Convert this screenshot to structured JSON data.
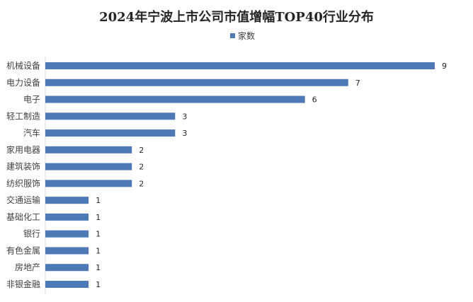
{
  "chart_data": {
    "type": "bar",
    "orientation": "horizontal",
    "title": "2024年宁波上市公司市值增幅TOP40行业分布",
    "categories": [
      "机械设备",
      "电力设备",
      "电子",
      "轻工制造",
      "汽车",
      "家用电器",
      "建筑装饰",
      "纺织服饰",
      "交通运输",
      "基础化工",
      "银行",
      "有色金属",
      "房地产",
      "非银金融"
    ],
    "series": [
      {
        "name": "家数",
        "values": [
          9,
          7,
          6,
          3,
          3,
          2,
          2,
          2,
          1,
          1,
          1,
          1,
          1,
          1
        ],
        "color": "#4E79B7"
      }
    ],
    "xlim": [
      0,
      9
    ],
    "legend": "top",
    "grid": false,
    "data_labels": true
  }
}
